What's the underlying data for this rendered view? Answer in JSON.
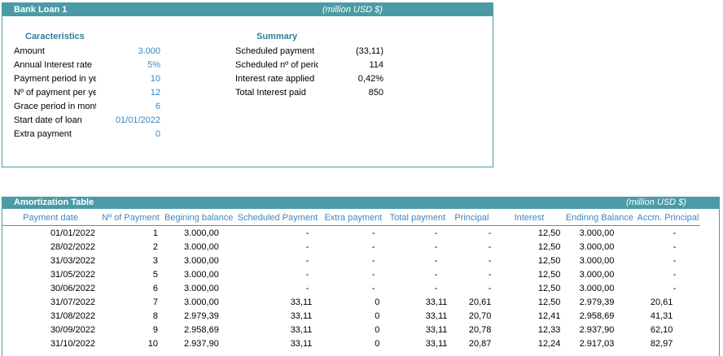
{
  "loan": {
    "title": "Bank Loan 1",
    "unit": "(million USD $)",
    "characteristics_title": "Caracteristics",
    "summary_title": "Summary",
    "characteristics": [
      {
        "label": "Amount",
        "value": "3.000"
      },
      {
        "label": "Annual Interest rate",
        "value": "5%"
      },
      {
        "label": "Payment period in years",
        "value": "10"
      },
      {
        "label": "Nº of payment per year",
        "value": "12"
      },
      {
        "label": "Grace period in months",
        "value": "6"
      },
      {
        "label": "Start date of loan",
        "value": "01/01/2022"
      },
      {
        "label": "Extra payment",
        "value": "0"
      }
    ],
    "summary": [
      {
        "label": "Scheduled payment",
        "value": "(33,11)"
      },
      {
        "label": "Scheduled nº of periods",
        "value": "114"
      },
      {
        "label": "Interest rate applied",
        "value": "0,42%"
      },
      {
        "label": "Total Interest paid",
        "value": "850"
      }
    ]
  },
  "amortization": {
    "title": "Amortization Table",
    "unit": "(million USD $)",
    "columns": [
      "Payment date",
      "Nº of Payment",
      "Begining balance",
      "Scheduled Payment",
      "Extra payment",
      "Total payment",
      "Principal",
      "Interest",
      "Endinng Balance",
      "Accm. Principal"
    ],
    "rows": [
      [
        "01/01/2022",
        "1",
        "3.000,00",
        "-",
        "-",
        "-",
        "-",
        "12,50",
        "3.000,00",
        "-"
      ],
      [
        "28/02/2022",
        "2",
        "3.000,00",
        "-",
        "-",
        "-",
        "-",
        "12,50",
        "3.000,00",
        "-"
      ],
      [
        "31/03/2022",
        "3",
        "3.000,00",
        "-",
        "-",
        "-",
        "-",
        "12,50",
        "3.000,00",
        "-"
      ],
      [
        "31/05/2022",
        "5",
        "3.000,00",
        "-",
        "-",
        "-",
        "-",
        "12,50",
        "3.000,00",
        "-"
      ],
      [
        "30/06/2022",
        "6",
        "3.000,00",
        "-",
        "-",
        "-",
        "-",
        "12,50",
        "3.000,00",
        "-"
      ],
      [
        "31/07/2022",
        "7",
        "3.000,00",
        "33,11",
        "0",
        "33,11",
        "20,61",
        "12,50",
        "2.979,39",
        "20,61"
      ],
      [
        "31/08/2022",
        "8",
        "2.979,39",
        "33,11",
        "0",
        "33,11",
        "20,70",
        "12,41",
        "2.958,69",
        "41,31"
      ],
      [
        "30/09/2022",
        "9",
        "2.958,69",
        "33,11",
        "0",
        "33,11",
        "20,78",
        "12,33",
        "2.937,90",
        "62,10"
      ],
      [
        "31/10/2022",
        "10",
        "2.937,90",
        "33,11",
        "0",
        "33,11",
        "20,87",
        "12,24",
        "2.917,03",
        "82,97"
      ]
    ]
  }
}
